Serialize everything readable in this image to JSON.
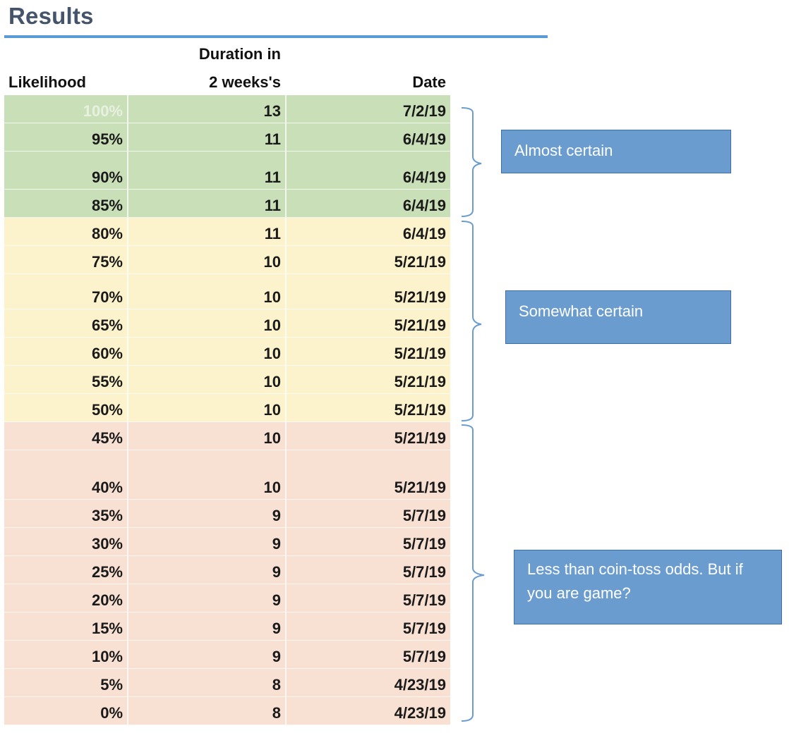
{
  "title": "Results",
  "headers": {
    "likelihood": "Likelihood",
    "duration_line1": "Duration in",
    "duration_line2": "2 weeks's",
    "date": "Date"
  },
  "rows": [
    {
      "likelihood": "100%",
      "duration": "13",
      "date": "7/2/19",
      "group": "green"
    },
    {
      "likelihood": "95%",
      "duration": "11",
      "date": "6/4/19",
      "group": "green"
    },
    {
      "likelihood": "90%",
      "duration": "11",
      "date": "6/4/19",
      "group": "green"
    },
    {
      "likelihood": "85%",
      "duration": "11",
      "date": "6/4/19",
      "group": "green"
    },
    {
      "likelihood": "80%",
      "duration": "11",
      "date": "6/4/19",
      "group": "yellow"
    },
    {
      "likelihood": "75%",
      "duration": "10",
      "date": "5/21/19",
      "group": "yellow"
    },
    {
      "likelihood": "70%",
      "duration": "10",
      "date": "5/21/19",
      "group": "yellow"
    },
    {
      "likelihood": "65%",
      "duration": "10",
      "date": "5/21/19",
      "group": "yellow"
    },
    {
      "likelihood": "60%",
      "duration": "10",
      "date": "5/21/19",
      "group": "yellow"
    },
    {
      "likelihood": "55%",
      "duration": "10",
      "date": "5/21/19",
      "group": "yellow"
    },
    {
      "likelihood": "50%",
      "duration": "10",
      "date": "5/21/19",
      "group": "yellow"
    },
    {
      "likelihood": "45%",
      "duration": "10",
      "date": "5/21/19",
      "group": "pink"
    },
    {
      "likelihood": "40%",
      "duration": "10",
      "date": "5/21/19",
      "group": "pink"
    },
    {
      "likelihood": "35%",
      "duration": "9",
      "date": "5/7/19",
      "group": "pink"
    },
    {
      "likelihood": "30%",
      "duration": "9",
      "date": "5/7/19",
      "group": "pink"
    },
    {
      "likelihood": "25%",
      "duration": "9",
      "date": "5/7/19",
      "group": "pink"
    },
    {
      "likelihood": "20%",
      "duration": "9",
      "date": "5/7/19",
      "group": "pink"
    },
    {
      "likelihood": "15%",
      "duration": "9",
      "date": "5/7/19",
      "group": "pink"
    },
    {
      "likelihood": "10%",
      "duration": "9",
      "date": "5/7/19",
      "group": "pink"
    },
    {
      "likelihood": "5%",
      "duration": "8",
      "date": "4/23/19",
      "group": "pink"
    },
    {
      "likelihood": "0%",
      "duration": "8",
      "date": "4/23/19",
      "group": "pink"
    }
  ],
  "callouts": {
    "almost_certain": "Almost certain",
    "somewhat_certain": "Somewhat certain",
    "less_than": "Less than coin-toss odds. But if you are game?"
  },
  "colors": {
    "title": "#44546a",
    "rule": "#5b9bd5",
    "green": "#c9dfb8",
    "yellow": "#fcf2cc",
    "pink": "#f8e0d3",
    "callout": "#6b9ccf",
    "brace": "#6b9ccf"
  }
}
